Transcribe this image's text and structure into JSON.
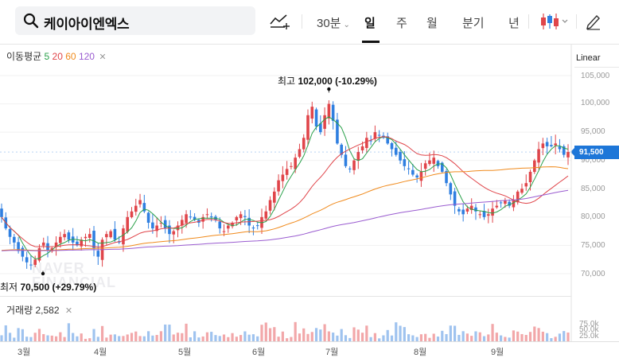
{
  "search": {
    "query": "케이아이엔엑스"
  },
  "toolbar": {
    "periods": [
      "30분",
      "일",
      "주",
      "월",
      "분기",
      "년"
    ],
    "active_period": "일",
    "icons": [
      "draw-line-icon",
      "candlestick-icon",
      "pencil-icon"
    ]
  },
  "indicators": {
    "label": "이동평균",
    "ma": [
      "5",
      "20",
      "60",
      "120"
    ],
    "colors": {
      "ma5": "#2ba14b",
      "ma20": "#e0454a",
      "ma60": "#f08a1c",
      "ma120": "#9a5cd0"
    }
  },
  "scale": {
    "label": "Linear"
  },
  "current_price_label": "91,500",
  "annotations": {
    "high": {
      "prefix": "최고",
      "value": "102,000",
      "change": "(-10.29%)"
    },
    "low": {
      "prefix": "최저",
      "value": "70,500",
      "change": "(+29.79%)"
    }
  },
  "volume": {
    "label": "거래량",
    "value": "2,582",
    "ticks": [
      "75.0k",
      "50.0k",
      "25.0k"
    ]
  },
  "colors": {
    "up": "#e0454a",
    "down": "#2f7fe0",
    "accent": "#1d76d8"
  },
  "chart_data": {
    "type": "candlestick",
    "y_ticks": [
      "105,000",
      "100,000",
      "95,000",
      "90,000",
      "85,000",
      "80,000",
      "75,000",
      "70,000"
    ],
    "y_tick_values": [
      105000,
      100000,
      95000,
      90000,
      85000,
      80000,
      75000,
      70000
    ],
    "ylim": [
      68000,
      106500
    ],
    "x_labels": [
      "3월",
      "4월",
      "5월",
      "6월",
      "7월",
      "8월",
      "9월"
    ],
    "x_label_index": [
      3,
      24,
      46,
      67,
      88,
      109,
      130
    ],
    "close": [
      80000,
      78000,
      76500,
      75500,
      74000,
      73000,
      72000,
      71500,
      72500,
      74500,
      75500,
      74000,
      74500,
      75500,
      76500,
      77000,
      76000,
      75500,
      75000,
      76000,
      76500,
      77000,
      74500,
      73000,
      76000,
      77000,
      77500,
      76000,
      75500,
      78000,
      80000,
      81000,
      82000,
      83000,
      81000,
      79000,
      78000,
      78500,
      79000,
      78000,
      77000,
      77500,
      78500,
      79500,
      80500,
      80000,
      79500,
      79000,
      80000,
      80500,
      80000,
      79500,
      78000,
      77500,
      78500,
      79000,
      80000,
      80500,
      80000,
      78500,
      78000,
      78500,
      80000,
      81000,
      83000,
      84500,
      86500,
      87500,
      88500,
      89000,
      90500,
      92000,
      94000,
      98000,
      99500,
      96000,
      95000,
      98000,
      100000,
      97000,
      93000,
      91000,
      89000,
      88500,
      90000,
      91500,
      92500,
      94000,
      93500,
      95000,
      94500,
      94000,
      93000,
      92000,
      91000,
      90000,
      89000,
      88500,
      87500,
      87000,
      88000,
      89500,
      90000,
      90500,
      89000,
      88000,
      86000,
      84000,
      82000,
      81000,
      80500,
      81500,
      82000,
      81000,
      80500,
      80000,
      80500,
      81500,
      82000,
      82500,
      83000,
      82000,
      83000,
      84500,
      85000,
      86000,
      88000,
      90000,
      92000,
      93000,
      92500,
      92500,
      93000,
      92000,
      91000,
      91500
    ],
    "volume_note": "volume shown as bars per session; 75.0k scale"
  }
}
